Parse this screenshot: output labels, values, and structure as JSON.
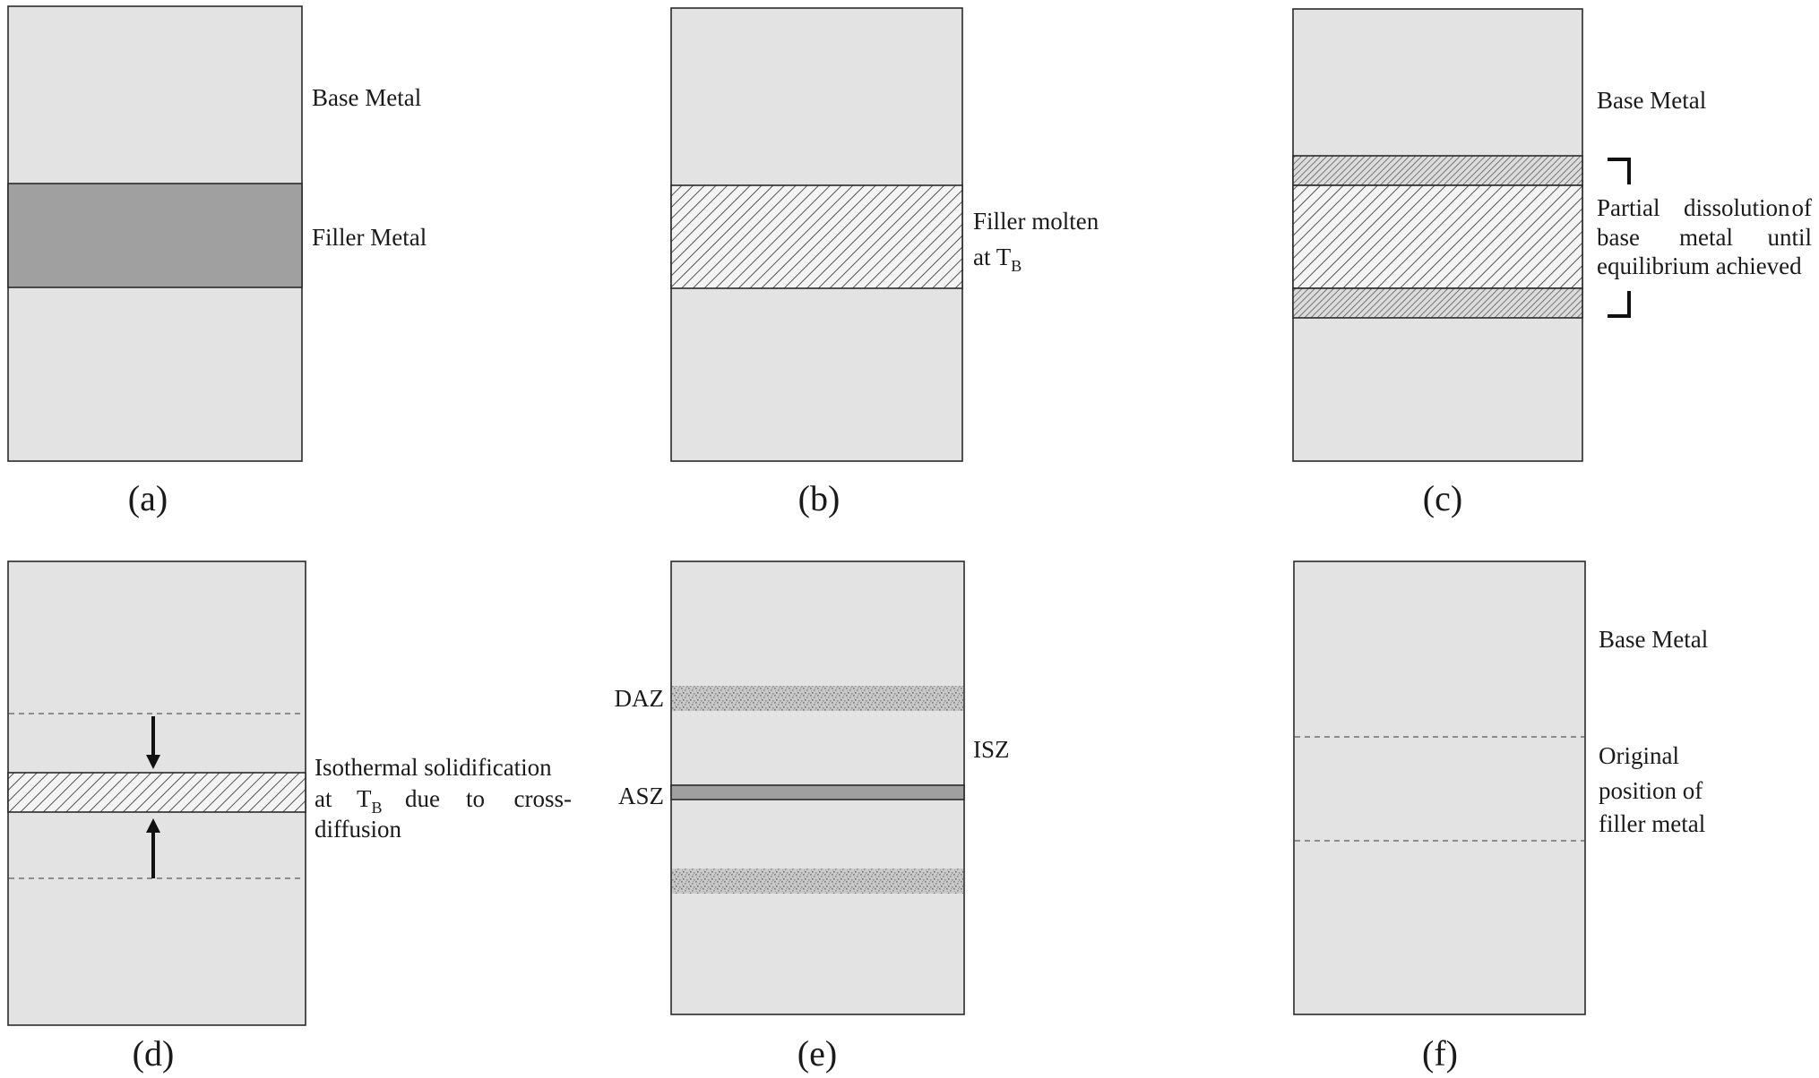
{
  "panels": {
    "a": {
      "caption": "(a)",
      "base_metal_label": "Base Metal",
      "filler_label": "Filler Metal"
    },
    "b": {
      "caption": "(b)",
      "line1": "Filler molten",
      "line2_main": "at T",
      "line2_sub": "B"
    },
    "c": {
      "caption": "(c)",
      "base_metal_label": "Base Metal",
      "line1_w1": "Partial",
      "line1_w2": "dissolution",
      "line1_w3": "of",
      "line2_w1": "base",
      "line2_w2": "metal",
      "line2_w3": "until",
      "line3": "equilibrium achieved"
    },
    "d": {
      "caption": "(d)",
      "line1": "Isothermal solidification",
      "line2_at": "at",
      "line2_T": "T",
      "line2_sub": "B",
      "line2_w2": "due",
      "line2_w3": "to",
      "line2_w4": "cross-",
      "line3": "diffusion"
    },
    "e": {
      "caption": "(e)",
      "daz_label": "DAZ",
      "asz_label": "ASZ",
      "isz_label": "ISZ"
    },
    "f": {
      "caption": "(f)",
      "base_metal_label": "Base Metal",
      "line1": "Original",
      "line2": "position of",
      "line3": "filler metal"
    }
  },
  "colors": {
    "base_metal": "#e3e3e3",
    "filler_metal": "#a0a0a0",
    "outline": "#2a2a2a"
  }
}
